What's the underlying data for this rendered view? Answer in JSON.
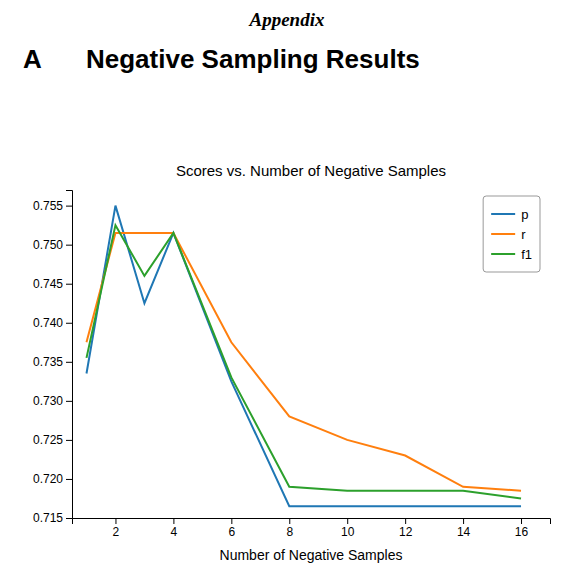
{
  "chart_data": {
    "type": "line",
    "title": "Scores vs. Number of Negative Samples",
    "x_label": "Number of Negative Samples",
    "annotations": [
      "Appendix",
      "A",
      "Negative Sampling Results"
    ],
    "x": [
      1,
      2,
      3,
      4,
      6,
      8,
      10,
      12,
      14,
      16
    ],
    "series": [
      {
        "name": "p",
        "color": "#1f77b4",
        "values": [
          0.7335,
          0.755,
          0.7425,
          0.7515,
          0.7325,
          0.7165,
          0.7165,
          0.7165,
          0.7165,
          0.7165
        ]
      },
      {
        "name": "r",
        "color": "#ff7f0e",
        "values": [
          0.7375,
          0.7515,
          0.7515,
          0.7515,
          0.7375,
          0.728,
          0.725,
          0.723,
          0.719,
          0.7185
        ]
      },
      {
        "name": "f1",
        "color": "#2ca02c",
        "values": [
          0.7355,
          0.7525,
          0.746,
          0.7515,
          0.733,
          0.719,
          0.7185,
          0.7185,
          0.7185,
          0.7175
        ]
      }
    ],
    "xlim": [
      0.5,
      17
    ],
    "ylim": [
      0.715,
      0.757
    ],
    "xticks": [
      2,
      4,
      6,
      8,
      10,
      12,
      14,
      16
    ],
    "yticks": [
      0.715,
      {
        "value": 0.72,
        "label": "0.720"
      },
      0.725,
      {
        "value": 0.73,
        "label": "0.730"
      },
      0.735,
      {
        "value": 0.74,
        "label": "0.740"
      },
      0.745,
      {
        "value": 0.75,
        "label": "0.750"
      },
      0.755
    ],
    "legend": "upper right",
    "grid": false
  }
}
